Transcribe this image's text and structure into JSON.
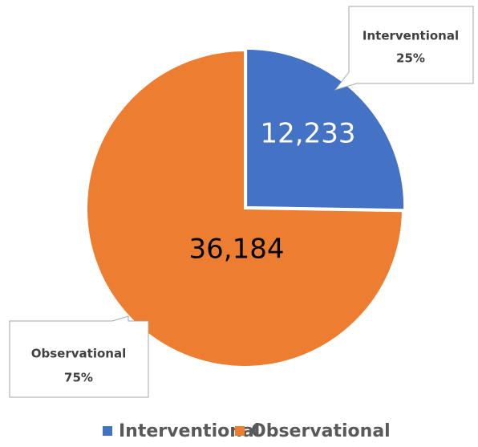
{
  "chart_data": {
    "type": "pie",
    "categories": [
      "Interventional",
      "Observational"
    ],
    "values": [
      12233,
      36184
    ],
    "value_labels": [
      "12,233",
      "36,184"
    ],
    "percent_labels": [
      "25%",
      "75%"
    ],
    "colors": [
      "#4472c4",
      "#ed7d31"
    ],
    "legend": "bottom"
  }
}
